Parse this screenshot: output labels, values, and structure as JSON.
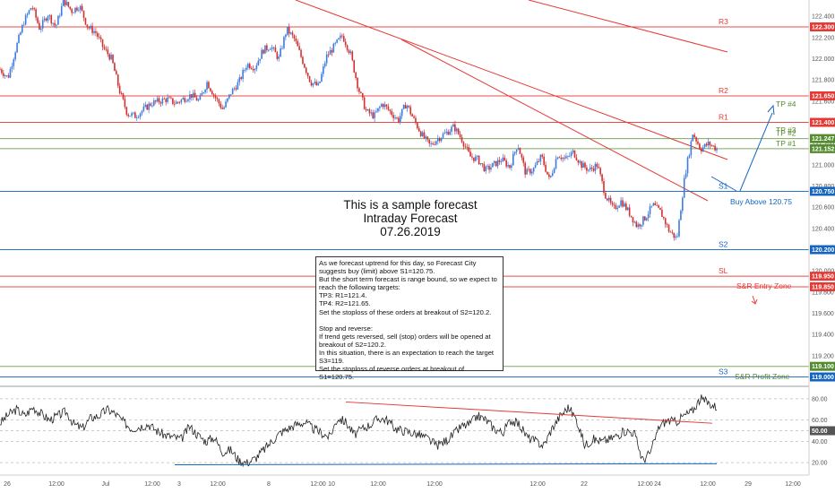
{
  "chart_data": [
    {
      "type": "candlestick",
      "title": "This is a sample forecast",
      "subtitle": "Intraday Forecast",
      "date": "07.26.2019",
      "ylim": [
        119.0,
        122.5
      ],
      "y_ticks": [
        "122.400",
        "122.200",
        "122.000",
        "121.800",
        "121.600",
        "121.400",
        "121.200",
        "121.000",
        "120.800",
        "120.600",
        "120.400",
        "120.200",
        "120.000",
        "119.800",
        "119.600",
        "119.400",
        "119.200",
        "119.000"
      ],
      "x_ticks": [
        "26",
        "12:00",
        "Jul",
        "12:00",
        "3",
        "12:00",
        "8",
        "12:00",
        "10",
        "12:00",
        "12:00",
        "12:00",
        "22",
        "12:00",
        "24",
        "12:00",
        "29",
        "12:00"
      ],
      "price_path": [
        121.9,
        121.82,
        122.1,
        122.35,
        122.5,
        122.28,
        122.42,
        122.3,
        122.55,
        122.45,
        122.5,
        122.3,
        122.25,
        122.1,
        122.0,
        121.7,
        121.48,
        121.46,
        121.52,
        121.58,
        121.6,
        121.62,
        121.58,
        121.62,
        121.66,
        121.6,
        121.78,
        121.64,
        121.52,
        121.68,
        121.78,
        121.95,
        121.92,
        122.08,
        122.12,
        122.0,
        122.28,
        122.18,
        121.98,
        121.78,
        121.74,
        122.02,
        122.12,
        122.22,
        122.05,
        121.72,
        121.5,
        121.46,
        121.58,
        121.5,
        121.42,
        121.58,
        121.42,
        121.28,
        121.18,
        121.25,
        121.3,
        121.36,
        121.24,
        121.08,
        121.05,
        120.95,
        121.0,
        121.05,
        120.98,
        121.2,
        120.92,
        120.96,
        121.08,
        120.85,
        121.1,
        121.05,
        121.12,
        121.0,
        120.95,
        121.0,
        120.72,
        120.58,
        120.66,
        120.55,
        120.42,
        120.5,
        120.62,
        120.55,
        120.38,
        120.3,
        120.9,
        121.3,
        121.15,
        121.2,
        121.15
      ],
      "levels": [
        {
          "name": "R3",
          "value": 122.3,
          "badge": "122.300",
          "color": "#e53935"
        },
        {
          "name": "R2",
          "value": 121.65,
          "badge": "121.650",
          "color": "#e53935"
        },
        {
          "name": "R1",
          "value": 121.4,
          "badge": "121.400",
          "color": "#e53935"
        },
        {
          "name": "TP #2",
          "value": 121.247,
          "badge": "121.247",
          "color": "#558b2f"
        },
        {
          "name": "TP #1",
          "value": 121.152,
          "badge": "121.152",
          "color": "#558b2f"
        },
        {
          "name": "S1",
          "value": 120.75,
          "badge": "120.750",
          "color": "#1565c0"
        },
        {
          "name": "S2",
          "value": 120.2,
          "badge": "120.200",
          "color": "#1565c0"
        },
        {
          "name": "SL",
          "value": 119.95,
          "badge": "119.950",
          "color": "#e53935"
        },
        {
          "name": "",
          "value": 119.85,
          "badge": "119.850",
          "color": "#e53935"
        },
        {
          "name": "",
          "value": 119.1,
          "badge": "119.100",
          "color": "#558b2f"
        },
        {
          "name": "S3",
          "value": 119.0,
          "badge": "119.000",
          "color": "#1565c0"
        }
      ],
      "annotations": {
        "tp3": "TP #3",
        "tp4": "TP #4",
        "buy": "Buy Above 120.75",
        "entry_zone": "S&R Entry Zone",
        "profit_zone": "S&R Profit Zone"
      }
    },
    {
      "type": "line",
      "ylim": [
        10,
        90
      ],
      "y_ticks": [
        "80.00",
        "60.00",
        "40.00",
        "20.00"
      ],
      "badge": "50.00",
      "values": [
        57,
        65,
        70,
        64,
        72,
        66,
        60,
        64,
        68,
        56,
        52,
        62,
        64,
        70,
        66,
        58,
        52,
        54,
        56,
        50,
        46,
        44,
        42,
        54,
        46,
        40,
        44,
        30,
        32,
        22,
        20,
        24,
        32,
        40,
        48,
        52,
        56,
        58,
        52,
        48,
        44,
        62,
        58,
        46,
        52,
        56,
        62,
        60,
        52,
        50,
        48,
        46,
        42,
        36,
        40,
        46,
        54,
        56,
        64,
        60,
        52,
        48,
        60,
        56,
        44,
        40,
        36,
        52,
        64,
        72,
        60,
        36,
        42,
        40,
        42,
        46,
        50,
        48,
        22,
        30,
        54,
        60,
        58,
        64,
        68,
        80,
        76,
        72
      ]
    }
  ],
  "notes": [
    "As we forecast uptrend for this day, so Forecast City suggests buy (limit) above S1=120.75.",
    "But the short term forecast is range bound, so we expect to reach the following targets:",
    "TP3: R1=121.4.",
    "TP4: R2=121.65.",
    "Set the stoploss of these orders at breakout of S2=120.2.",
    "Stop and reverse:",
    "If trend gets reversed, sell (stop) orders will be opened at breakout of S2=120.2.",
    "In this situation, there is an expectation to reach the target S3=119.",
    "Set the stoploss of reverse orders at breakout of S1=120.75."
  ]
}
